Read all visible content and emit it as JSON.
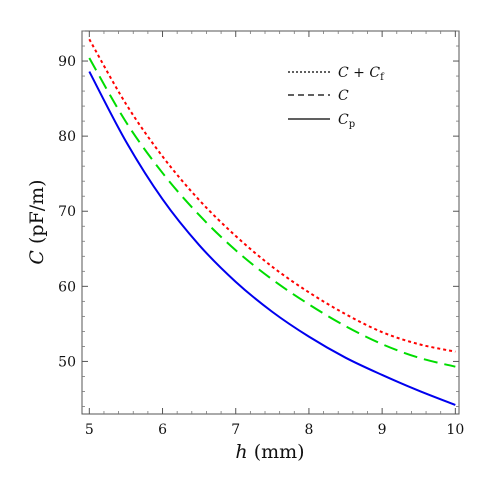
{
  "chart_data": {
    "type": "line",
    "xlabel": "h (mm)",
    "ylabel": "C (pF/m)",
    "xlim": [
      4.9,
      10.05
    ],
    "ylim": [
      43,
      94
    ],
    "xticks": [
      5,
      6,
      7,
      8,
      9,
      10
    ],
    "yticks": [
      50,
      60,
      70,
      80,
      90
    ],
    "grid": false,
    "legend_position": "top-right",
    "x": [
      5.0,
      5.5,
      6.0,
      6.5,
      7.0,
      7.5,
      8.0,
      8.5,
      9.0,
      9.5,
      10.0
    ],
    "series": [
      {
        "name": "C + Cf",
        "style": "dotted",
        "color": "#ff0000",
        "values": [
          92.9,
          84.3,
          77.3,
          71.5,
          66.7,
          62.6,
          59.2,
          56.3,
          53.9,
          52.3,
          51.3
        ]
      },
      {
        "name": "C",
        "style": "dashed",
        "color": "#00dd00",
        "values": [
          90.4,
          81.9,
          75.1,
          69.5,
          64.8,
          60.9,
          57.6,
          54.7,
          52.3,
          50.5,
          49.3
        ]
      },
      {
        "name": "Cp",
        "style": "solid",
        "color": "#0000ee",
        "values": [
          88.6,
          79.3,
          71.6,
          65.5,
          60.6,
          56.6,
          53.3,
          50.5,
          48.2,
          46.1,
          44.2
        ]
      }
    ]
  }
}
